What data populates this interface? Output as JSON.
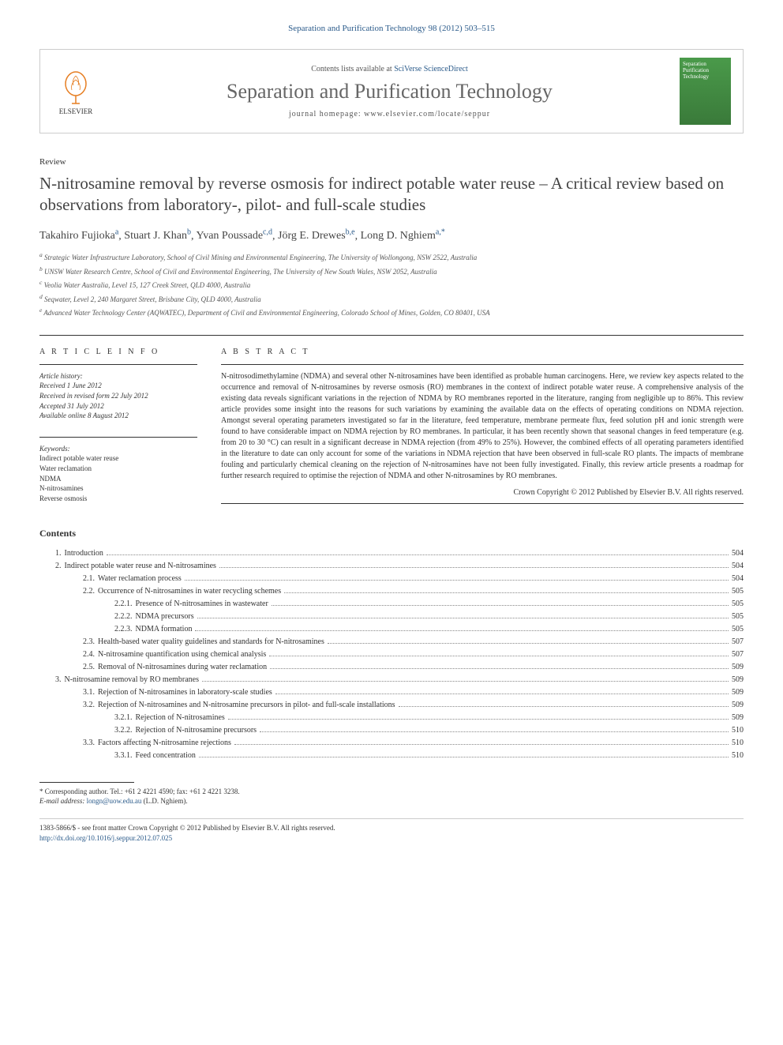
{
  "citation": "Separation and Purification Technology 98 (2012) 503–515",
  "header": {
    "elsevier_label": "ELSEVIER",
    "contents_prefix": "Contents lists available at ",
    "contents_link": "SciVerse ScienceDirect",
    "journal_name": "Separation and Purification Technology",
    "homepage_label": "journal homepage: www.elsevier.com/locate/seppur",
    "cover_text": "Separation\nPurification\nTechnology"
  },
  "article_type": "Review",
  "title": "N-nitrosamine removal by reverse osmosis for indirect potable water reuse – A critical review based on observations from laboratory-, pilot- and full-scale studies",
  "authors": [
    {
      "name": "Takahiro Fujioka",
      "sup": "a"
    },
    {
      "name": "Stuart J. Khan",
      "sup": "b"
    },
    {
      "name": "Yvan Poussade",
      "sup": "c,d"
    },
    {
      "name": "Jörg E. Drewes",
      "sup": "b,e"
    },
    {
      "name": "Long D. Nghiem",
      "sup": "a,*"
    }
  ],
  "affiliations": [
    {
      "sup": "a",
      "text": "Strategic Water Infrastructure Laboratory, School of Civil Mining and Environmental Engineering, The University of Wollongong, NSW 2522, Australia"
    },
    {
      "sup": "b",
      "text": "UNSW Water Research Centre, School of Civil and Environmental Engineering, The University of New South Wales, NSW 2052, Australia"
    },
    {
      "sup": "c",
      "text": "Veolia Water Australia, Level 15, 127 Creek Street, QLD 4000, Australia"
    },
    {
      "sup": "d",
      "text": "Seqwater, Level 2, 240 Margaret Street, Brisbane City, QLD 4000, Australia"
    },
    {
      "sup": "e",
      "text": "Advanced Water Technology Center (AQWATEC), Department of Civil and Environmental Engineering, Colorado School of Mines, Golden, CO 80401, USA"
    }
  ],
  "info_header": "A R T I C L E   I N F O",
  "abstract_header": "A B S T R A C T",
  "history": {
    "label": "Article history:",
    "received": "Received 1 June 2012",
    "revised": "Received in revised form 22 July 2012",
    "accepted": "Accepted 31 July 2012",
    "online": "Available online 8 August 2012"
  },
  "keywords": {
    "label": "Keywords:",
    "items": [
      "Indirect potable water reuse",
      "Water reclamation",
      "NDMA",
      "N-nitrosamines",
      "Reverse osmosis"
    ]
  },
  "abstract": "N-nitrosodimethylamine (NDMA) and several other N-nitrosamines have been identified as probable human carcinogens. Here, we review key aspects related to the occurrence and removal of N-nitrosamines by reverse osmosis (RO) membranes in the context of indirect potable water reuse. A comprehensive analysis of the existing data reveals significant variations in the rejection of NDMA by RO membranes reported in the literature, ranging from negligible up to 86%. This review article provides some insight into the reasons for such variations by examining the available data on the effects of operating conditions on NDMA rejection. Amongst several operating parameters investigated so far in the literature, feed temperature, membrane permeate flux, feed solution pH and ionic strength were found to have considerable impact on NDMA rejection by RO membranes. In particular, it has been recently shown that seasonal changes in feed temperature (e.g. from 20 to 30 °C) can result in a significant decrease in NDMA rejection (from 49% to 25%). However, the combined effects of all operating parameters identified in the literature to date can only account for some of the variations in NDMA rejection that have been observed in full-scale RO plants. The impacts of membrane fouling and particularly chemical cleaning on the rejection of N-nitrosamines have not been fully investigated. Finally, this review article presents a roadmap for further research required to optimise the rejection of NDMA and other N-nitrosamines by RO membranes.",
  "copyright": "Crown Copyright © 2012 Published by Elsevier B.V. All rights reserved.",
  "contents_header": "Contents",
  "toc": [
    {
      "level": 1,
      "num": "1.",
      "title": "Introduction",
      "page": "504"
    },
    {
      "level": 1,
      "num": "2.",
      "title": "Indirect potable water reuse and N-nitrosamines",
      "page": "504"
    },
    {
      "level": 2,
      "num": "2.1.",
      "title": "Water reclamation process",
      "page": "504"
    },
    {
      "level": 2,
      "num": "2.2.",
      "title": "Occurrence of N-nitrosamines in water recycling schemes",
      "page": "505"
    },
    {
      "level": 3,
      "num": "2.2.1.",
      "title": "Presence of N-nitrosamines in wastewater",
      "page": "505"
    },
    {
      "level": 3,
      "num": "2.2.2.",
      "title": "NDMA precursors",
      "page": "505"
    },
    {
      "level": 3,
      "num": "2.2.3.",
      "title": "NDMA formation",
      "page": "505"
    },
    {
      "level": 2,
      "num": "2.3.",
      "title": "Health-based water quality guidelines and standards for N-nitrosamines",
      "page": "507"
    },
    {
      "level": 2,
      "num": "2.4.",
      "title": "N-nitrosamine quantification using chemical analysis",
      "page": "507"
    },
    {
      "level": 2,
      "num": "2.5.",
      "title": "Removal of N-nitrosamines during water reclamation",
      "page": "509"
    },
    {
      "level": 1,
      "num": "3.",
      "title": "N-nitrosamine removal by RO membranes",
      "page": "509"
    },
    {
      "level": 2,
      "num": "3.1.",
      "title": "Rejection of N-nitrosamines in laboratory-scale studies",
      "page": "509"
    },
    {
      "level": 2,
      "num": "3.2.",
      "title": "Rejection of N-nitrosamines and N-nitrosamine precursors in pilot- and full-scale installations",
      "page": "509"
    },
    {
      "level": 3,
      "num": "3.2.1.",
      "title": "Rejection of N-nitrosamines",
      "page": "509"
    },
    {
      "level": 3,
      "num": "3.2.2.",
      "title": "Rejection of N-nitrosamine precursors",
      "page": "510"
    },
    {
      "level": 2,
      "num": "3.3.",
      "title": "Factors affecting N-nitrosamine rejections",
      "page": "510"
    },
    {
      "level": 3,
      "num": "3.3.1.",
      "title": "Feed concentration",
      "page": "510"
    }
  ],
  "corresponding": {
    "line1": "* Corresponding author. Tel.: +61 2 4221 4590; fax: +61 2 4221 3238.",
    "email_label": "E-mail address:",
    "email": "longn@uow.edu.au",
    "name": "(L.D. Nghiem)."
  },
  "bottom": {
    "issn": "1383-5866/$ - see front matter Crown Copyright © 2012 Published by Elsevier B.V. All rights reserved.",
    "doi": "http://dx.doi.org/10.1016/j.seppur.2012.07.025"
  },
  "colors": {
    "link": "#2a5a8a",
    "text": "#333333",
    "rule": "#333333",
    "cover_bg": "#4a9a4a"
  }
}
